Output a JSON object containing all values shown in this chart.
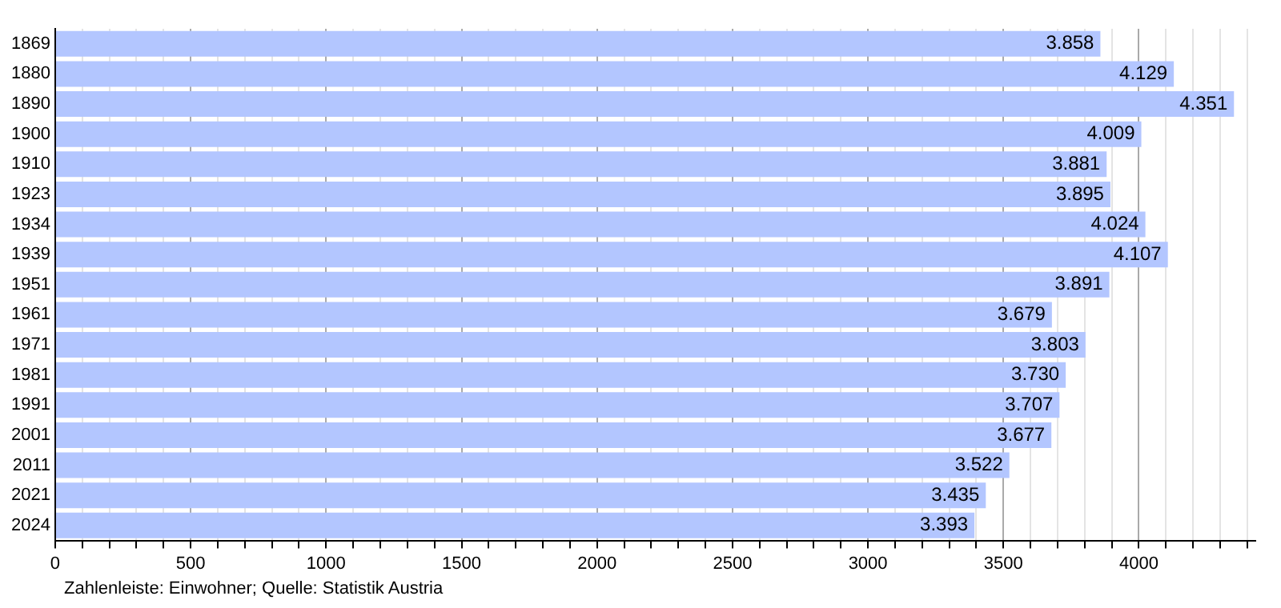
{
  "chart_data": {
    "type": "bar",
    "orientation": "horizontal",
    "categories": [
      "1869",
      "1880",
      "1890",
      "1900",
      "1910",
      "1923",
      "1934",
      "1939",
      "1951",
      "1961",
      "1971",
      "1981",
      "1991",
      "2001",
      "2011",
      "2021",
      "2024"
    ],
    "values": [
      3858,
      4129,
      4351,
      4009,
      3881,
      3895,
      4024,
      4107,
      3891,
      3679,
      3803,
      3730,
      3707,
      3677,
      3522,
      3435,
      3393
    ],
    "value_labels": [
      "3.858",
      "4.129",
      "4.351",
      "4.009",
      "3.881",
      "3.895",
      "4.024",
      "4.107",
      "3.891",
      "3.679",
      "3.803",
      "3.730",
      "3.707",
      "3.677",
      "3.522",
      "3.435",
      "3.393"
    ],
    "color": "#b3c6ff",
    "xlim": [
      0,
      4430
    ],
    "xticks": [
      0,
      {
        "value": 100,
        "label": null
      },
      {
        "value": 200,
        "label": null
      },
      {
        "value": 300,
        "label": null
      },
      {
        "value": 400,
        "label": null
      },
      500,
      {
        "value": 600,
        "label": null
      },
      {
        "value": 700,
        "label": null
      },
      {
        "value": 800,
        "label": null
      },
      {
        "value": 900,
        "label": null
      },
      1000,
      {
        "value": 1100,
        "label": null
      },
      {
        "value": 1200,
        "label": null
      },
      {
        "value": 1300,
        "label": null
      },
      {
        "value": 1400,
        "label": null
      },
      1500,
      {
        "value": 1600,
        "label": null
      },
      {
        "value": 1700,
        "label": null
      },
      {
        "value": 1800,
        "label": null
      },
      {
        "value": 1900,
        "label": null
      },
      2000,
      {
        "value": 2100,
        "label": null
      },
      {
        "value": 2200,
        "label": null
      },
      {
        "value": 2300,
        "label": null
      },
      {
        "value": 2400,
        "label": null
      },
      2500,
      {
        "value": 2600,
        "label": null
      },
      {
        "value": 2700,
        "label": null
      },
      {
        "value": 2800,
        "label": null
      },
      {
        "value": 2900,
        "label": null
      },
      3000,
      {
        "value": 3100,
        "label": null
      },
      {
        "value": 3200,
        "label": null
      },
      {
        "value": 3300,
        "label": null
      },
      {
        "value": 3400,
        "label": null
      },
      3500,
      {
        "value": 3600,
        "label": null
      },
      {
        "value": 3700,
        "label": null
      },
      {
        "value": 3800,
        "label": null
      },
      {
        "value": 3900,
        "label": null
      },
      4000,
      {
        "value": 4100,
        "label": null
      },
      {
        "value": 4200,
        "label": null
      },
      {
        "value": 4300,
        "label": null
      },
      {
        "value": 4400,
        "label": null
      }
    ],
    "grid": "x",
    "legend": false,
    "annotations": [
      "Zahlenleiste: Einwohner; Quelle: Statistik Austria"
    ]
  }
}
